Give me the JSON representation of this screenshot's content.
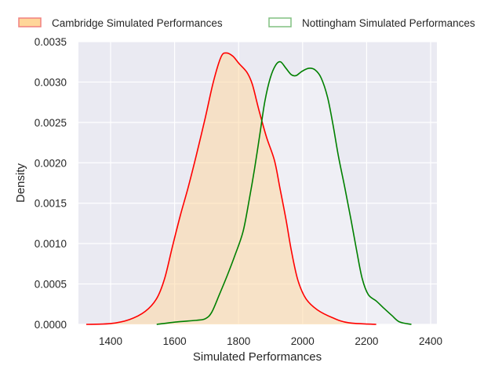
{
  "chart_data": {
    "type": "area",
    "title": "",
    "xlabel": "Simulated Performances",
    "ylabel": "Density",
    "xlim": [
      1300,
      2410
    ],
    "ylim": [
      0,
      0.0035
    ],
    "xticks": [
      1400,
      1600,
      1800,
      2000,
      2200,
      2400
    ],
    "xtick_labels": [
      "1400",
      "1600",
      "1800",
      "2000",
      "2200",
      "2400"
    ],
    "yticks": [
      0,
      0.0005,
      0.001,
      0.0015,
      0.002,
      0.0025,
      0.003,
      0.0035
    ],
    "ytick_labels": [
      "0.0000",
      "0.0005",
      "0.0010",
      "0.0015",
      "0.0020",
      "0.0025",
      "0.0030",
      "0.0035"
    ],
    "grid": true,
    "legend_position": "top",
    "background_color": "#eaeaf2",
    "grid_color": "#ffffff",
    "series": [
      {
        "name": "Cambridge Simulated Performances",
        "line_color": "#ff0000",
        "fill_color": "#ffd699",
        "fill_opacity": 0.5,
        "legend_face": "#ffd699",
        "legend_edge": "#f08080",
        "x": [
          1324,
          1400,
          1459,
          1508,
          1544,
          1569,
          1593,
          1618,
          1642,
          1667,
          1696,
          1721,
          1745,
          1762,
          1782,
          1801,
          1826,
          1843,
          1863,
          1887,
          1912,
          1929,
          1948,
          1965,
          1985,
          2010,
          2046,
          2095,
          2144,
          2230
        ],
        "y": [
          0,
          1e-05,
          6e-05,
          0.00016,
          0.00032,
          0.00057,
          0.00096,
          0.00135,
          0.00169,
          0.00208,
          0.00256,
          0.003,
          0.00331,
          0.00336,
          0.00332,
          0.00323,
          0.00312,
          0.00297,
          0.00266,
          0.00232,
          0.00203,
          0.00169,
          0.0013,
          0.00091,
          0.00055,
          0.00032,
          0.00018,
          8e-05,
          2e-05,
          0
        ]
      },
      {
        "name": "Nottingham Simulated Performances",
        "line_color": "#008000",
        "fill_color": "#ffffff",
        "fill_opacity": 0.25,
        "legend_face": "#ffffff",
        "legend_edge": "#80c080",
        "x": [
          1544,
          1606,
          1667,
          1696,
          1716,
          1740,
          1765,
          1789,
          1814,
          1833,
          1850,
          1867,
          1882,
          1899,
          1916,
          1931,
          1948,
          1965,
          1980,
          1997,
          2019,
          2039,
          2058,
          2078,
          2095,
          2112,
          2132,
          2151,
          2169,
          2186,
          2205,
          2230,
          2254,
          2279,
          2303,
          2340
        ],
        "y": [
          0,
          3e-05,
          5e-05,
          7e-05,
          0.00015,
          0.00037,
          0.00061,
          0.00086,
          0.00115,
          0.00154,
          0.00193,
          0.00237,
          0.00276,
          0.00305,
          0.00321,
          0.00325,
          0.00317,
          0.00309,
          0.00308,
          0.00313,
          0.00317,
          0.00315,
          0.00305,
          0.00281,
          0.00247,
          0.00208,
          0.00169,
          0.0013,
          0.00091,
          0.00057,
          0.00037,
          0.00029,
          0.0002,
          0.00011,
          3e-05,
          0
        ]
      }
    ]
  }
}
